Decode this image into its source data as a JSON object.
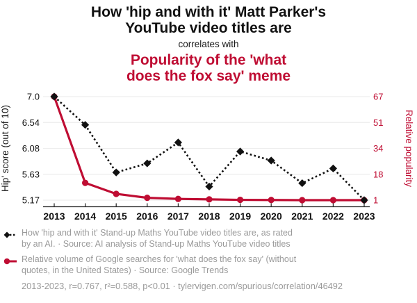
{
  "header": {
    "title1": "How 'hip and with it' Matt Parker's\nYouTube video titles are",
    "connector": "correlates with",
    "title2": "Popularity of the 'what\ndoes the fox say' meme"
  },
  "chart_data": {
    "type": "line",
    "x": [
      2013,
      2014,
      2015,
      2016,
      2017,
      2018,
      2019,
      2020,
      2021,
      2022,
      2023
    ],
    "x_axis": {
      "tick_labels": [
        "2013",
        "2014",
        "2015",
        "2016",
        "2017",
        "2018",
        "2019",
        "2020",
        "2021",
        "2022",
        "2023"
      ]
    },
    "left_axis": {
      "label": "Hip' score (out of 10)",
      "tick_labels": [
        "7.0",
        "6.54",
        "6.08",
        "5.63",
        "5.17"
      ],
      "range": [
        5.17,
        7.0
      ]
    },
    "right_axis": {
      "label": "Relative popularity",
      "tick_labels": [
        "67",
        "51",
        "34",
        "18",
        "1"
      ],
      "range": [
        1,
        67
      ]
    },
    "grid": true,
    "legend_position": "bottom",
    "series": [
      {
        "name": "How 'hip and with it' Stand-up Maths YouTube video titles are, as rated by an AI.",
        "axis": "left",
        "marker": "diamond",
        "line_style": "dotted",
        "color": "#111111",
        "values": [
          7.0,
          6.5,
          5.66,
          5.82,
          6.19,
          5.41,
          6.03,
          5.87,
          5.47,
          5.73,
          5.17
        ]
      },
      {
        "name": "Relative volume of Google searches for 'what does the fox say'",
        "axis": "right",
        "marker": "circle",
        "line_style": "solid",
        "color": "#bf0d33",
        "values": [
          67,
          12,
          5,
          2.5,
          1.8,
          1.5,
          1.2,
          1.1,
          1,
          1,
          1
        ]
      }
    ]
  },
  "legend": {
    "items": [
      {
        "text": "How 'hip and with it' Stand-up Maths YouTube video titles are, as rated\nby an AI. · Source: AI analysis of Stand-up Maths YouTube video titles"
      },
      {
        "text": "Relative volume of Google searches for 'what does the fox say' (without\nquotes, in the United States) · Source: Google Trends"
      }
    ]
  },
  "footer": {
    "text": "2013-2023, r=0.767, r²=0.588, p<0.01 · tylervigen.com/spurious/correlation/46492"
  },
  "colors": {
    "accent_red": "#bf0d33",
    "text_black": "#111111",
    "muted_gray": "#9a9a9a",
    "gridline": "#ededed",
    "axis": "#222222"
  }
}
